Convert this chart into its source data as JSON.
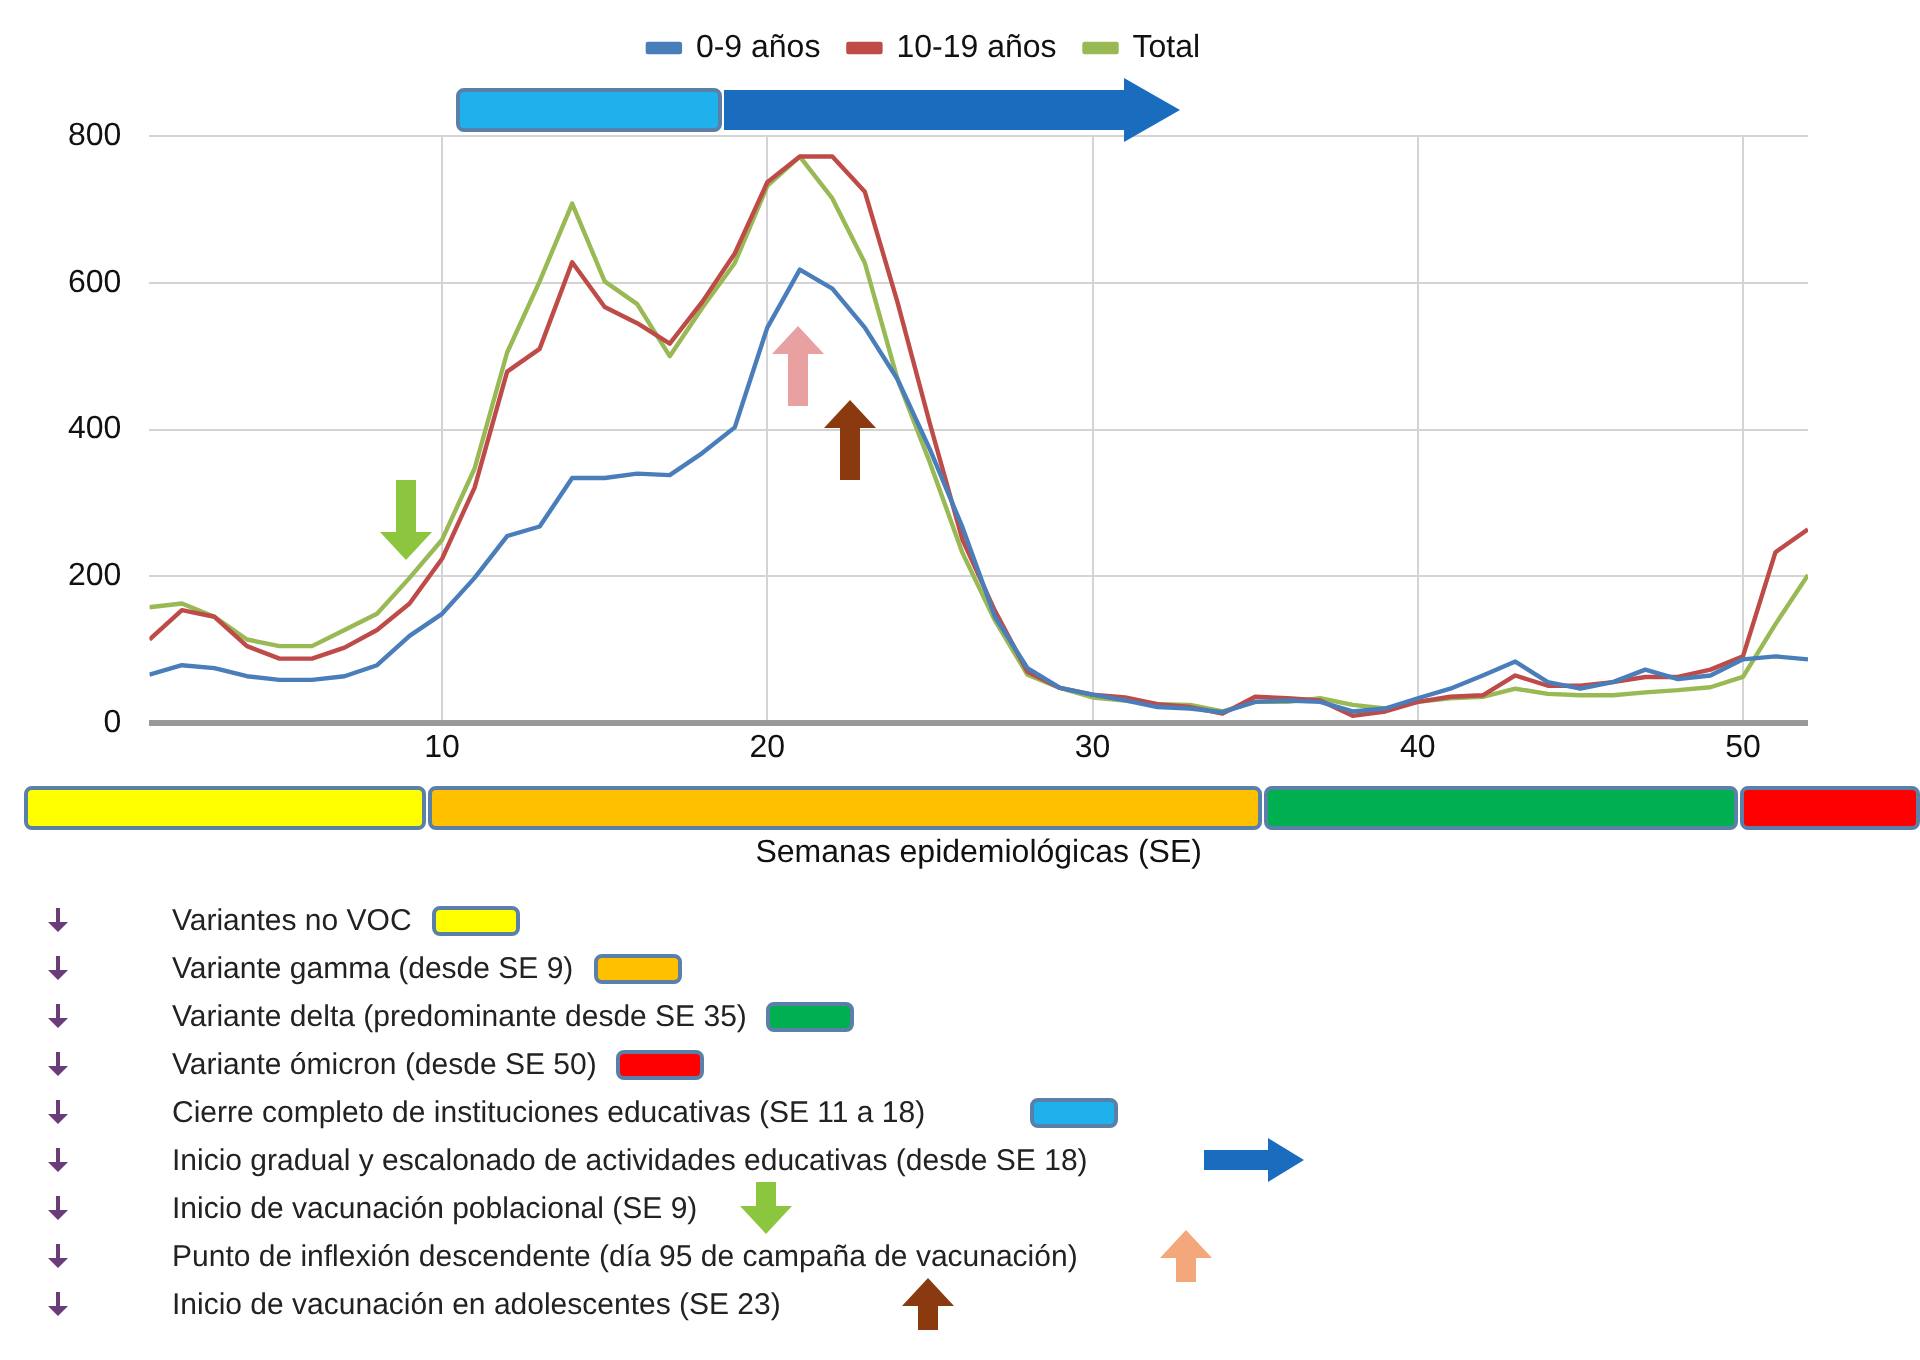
{
  "chart_data": {
    "type": "line",
    "xlabel": "Semanas epidemiológicas (SE)",
    "x": [
      1,
      2,
      3,
      4,
      5,
      6,
      7,
      8,
      9,
      10,
      11,
      12,
      13,
      14,
      15,
      16,
      17,
      18,
      19,
      20,
      21,
      22,
      23,
      24,
      25,
      26,
      27,
      28,
      29,
      30,
      31,
      32,
      33,
      34,
      35,
      36,
      37,
      38,
      39,
      40,
      41,
      42,
      43,
      44,
      45,
      46,
      47,
      48,
      49,
      50,
      51,
      52
    ],
    "series": [
      {
        "name": "0-9 años",
        "color": "#4a7ebb",
        "values": [
          66,
          79,
          75,
          64,
          59,
          59,
          64,
          79,
          119,
          149,
          198,
          255,
          268,
          334,
          334,
          340,
          338,
          368,
          403,
          539,
          618,
          592,
          539,
          469,
          373,
          267,
          145,
          75,
          48,
          39,
          31,
          22,
          20,
          15,
          29,
          31,
          29,
          16,
          20,
          34,
          47,
          65,
          84,
          56,
          47,
          56,
          73,
          60,
          65,
          87,
          91,
          87
        ]
      },
      {
        "name": "10-19 años",
        "color": "#be4b48",
        "values": [
          114,
          154,
          145,
          105,
          88,
          88,
          103,
          127,
          163,
          224,
          321,
          479,
          510,
          628,
          567,
          545,
          517,
          574,
          640,
          737,
          772,
          772,
          724,
          574,
          408,
          250,
          153,
          70,
          48,
          39,
          35,
          26,
          22,
          13,
          36,
          34,
          31,
          10,
          16,
          29,
          36,
          38,
          65,
          51,
          51,
          56,
          63,
          63,
          73,
          91,
          233,
          264
        ]
      },
      {
        "name": "Total",
        "color": "#98b954",
        "values": [
          158,
          163,
          145,
          114,
          105,
          105,
          127,
          149,
          198,
          250,
          347,
          505,
          602,
          708,
          602,
          571,
          500,
          566,
          627,
          732,
          772,
          715,
          627,
          469,
          355,
          232,
          140,
          66,
          48,
          35,
          31,
          26,
          25,
          16,
          29,
          29,
          34,
          25,
          20,
          29,
          34,
          36,
          47,
          40,
          38,
          38,
          42,
          45,
          49,
          63,
          135,
          202
        ]
      }
    ],
    "xlim": [
      1,
      52
    ],
    "xticks": [
      10,
      20,
      30,
      40,
      50
    ],
    "ylim": [
      0,
      800
    ],
    "yticks": [
      0,
      200,
      400,
      600,
      800
    ],
    "grid": true,
    "legend": "top",
    "annotations": [
      "Variantes no VOC",
      "Variante gamma (desde SE 9)",
      "Variante delta (predominante desde SE 35)",
      "Variante ómicron (desde SE 50)",
      "Cierre completo de instituciones educativas (SE 11 a 18)",
      "Inicio gradual y escalonado de actividades educativas (desde SE 18)",
      "Inicio de vacunación poblacional (SE 9)",
      "Punto de inflexión descendente (día 95 de campaña de vacunación)",
      "Inicio de vacunación en adolescentes (SE 23)"
    ]
  }
}
